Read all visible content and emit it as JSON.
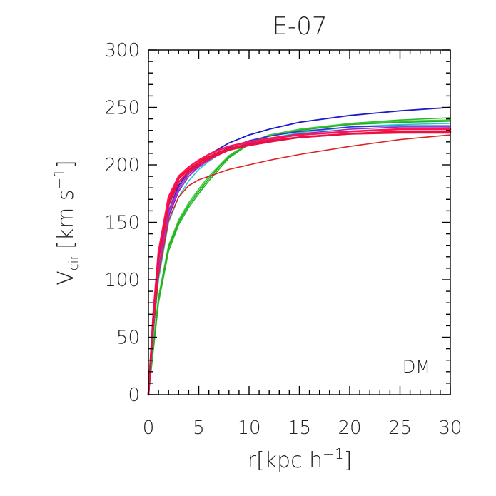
{
  "chart_data": {
    "type": "line",
    "title": "E-07",
    "xlabel": "r[kpc h",
    "xlabel_sup": "−1",
    "xlabel_close": "]",
    "ylabel": "V",
    "ylabel_sub": "cir",
    "ylabel_unit": "[km s",
    "ylabel_sup": "−1",
    "ylabel_close": "]",
    "annotation": "DM",
    "xlim": [
      0,
      30
    ],
    "ylim": [
      0,
      300
    ],
    "x_ticks": [
      0,
      5,
      10,
      15,
      20,
      25,
      30
    ],
    "y_ticks": [
      0,
      50,
      100,
      150,
      200,
      250,
      300
    ],
    "x_tick_labels": [
      "0",
      "5",
      "10",
      "15",
      "20",
      "25",
      "30"
    ],
    "y_tick_labels": [
      "0",
      "50",
      "100",
      "150",
      "200",
      "250",
      "300"
    ],
    "x_minor_step": 1,
    "y_minor_step": 10,
    "series": [
      {
        "name": "green-1",
        "color": "#22bb22",
        "width": 1.6,
        "x": [
          0,
          0.5,
          1,
          2,
          3,
          4,
          5,
          6,
          7,
          8,
          10,
          12,
          15,
          20,
          25,
          30
        ],
        "y": [
          0,
          40,
          80,
          125,
          148,
          163,
          175,
          186,
          196,
          206,
          218,
          225,
          230,
          236,
          239,
          241
        ]
      },
      {
        "name": "green-2",
        "color": "#33cc33",
        "width": 1.6,
        "x": [
          0,
          0.5,
          1,
          2,
          3,
          4,
          5,
          6,
          7,
          8,
          10,
          12,
          15,
          20,
          25,
          30
        ],
        "y": [
          0,
          45,
          85,
          130,
          152,
          167,
          179,
          190,
          199,
          208,
          219,
          226,
          231,
          236,
          238,
          239
        ]
      },
      {
        "name": "green-3",
        "color": "#2aaa2a",
        "width": 1.6,
        "x": [
          0,
          0.5,
          1,
          2,
          3,
          4,
          5,
          6,
          7,
          8,
          10,
          12,
          15,
          20,
          25,
          30
        ],
        "y": [
          0,
          42,
          82,
          128,
          150,
          165,
          177,
          188,
          198,
          207,
          218,
          225,
          230,
          235,
          237,
          238
        ]
      },
      {
        "name": "cyan-1",
        "color": "#22cccc",
        "width": 1.6,
        "x": [
          0,
          0.5,
          1,
          2,
          3,
          4,
          5,
          6,
          7,
          8,
          10,
          12,
          15,
          20,
          25,
          30
        ],
        "y": [
          0,
          55,
          100,
          150,
          172,
          186,
          196,
          203,
          209,
          213,
          219,
          223,
          228,
          233,
          235,
          236
        ]
      },
      {
        "name": "blue-1",
        "color": "#1a1acc",
        "width": 1.8,
        "x": [
          0,
          0.5,
          1,
          2,
          3,
          4,
          5,
          6,
          7,
          8,
          10,
          12,
          15,
          20,
          25,
          30
        ],
        "y": [
          0,
          60,
          108,
          160,
          182,
          194,
          202,
          209,
          214,
          219,
          226,
          231,
          237,
          243,
          247,
          250
        ]
      },
      {
        "name": "blue-2",
        "color": "#3333dd",
        "width": 1.6,
        "x": [
          0,
          0.5,
          1,
          2,
          3,
          4,
          5,
          6,
          7,
          8,
          10,
          12,
          15,
          20,
          25,
          30
        ],
        "y": [
          0,
          58,
          104,
          155,
          177,
          190,
          199,
          206,
          211,
          215,
          221,
          225,
          229,
          233,
          234,
          234
        ]
      },
      {
        "name": "purple-1",
        "color": "#8833bb",
        "width": 1.6,
        "x": [
          0,
          0.5,
          1,
          2,
          3,
          4,
          5,
          6,
          7,
          8,
          10,
          12,
          15,
          20,
          25,
          30
        ],
        "y": [
          0,
          62,
          110,
          160,
          180,
          192,
          200,
          206,
          210,
          214,
          219,
          223,
          227,
          231,
          233,
          233
        ]
      },
      {
        "name": "magenta-1",
        "color": "#cc22cc",
        "width": 1.6,
        "x": [
          0,
          0.5,
          1,
          2,
          3,
          4,
          5,
          6,
          7,
          8,
          10,
          12,
          15,
          20,
          25,
          30
        ],
        "y": [
          0,
          60,
          107,
          157,
          178,
          190,
          198,
          204,
          209,
          213,
          218,
          222,
          226,
          229,
          231,
          232
        ]
      },
      {
        "name": "red-low",
        "color": "#dd2222",
        "width": 1.6,
        "x": [
          0,
          0.5,
          1,
          2,
          3,
          4,
          5,
          6,
          7,
          8,
          10,
          12,
          15,
          20,
          25,
          30
        ],
        "y": [
          0,
          58,
          104,
          152,
          172,
          182,
          187,
          190,
          193,
          196,
          200,
          204,
          209,
          216,
          222,
          226
        ]
      },
      {
        "name": "red-1",
        "color": "#ee1133",
        "width": 2.6,
        "x": [
          0,
          0.5,
          1,
          2,
          3,
          4,
          5,
          6,
          7,
          8,
          10,
          12,
          15,
          20,
          25,
          30
        ],
        "y": [
          0,
          70,
          120,
          168,
          188,
          196,
          202,
          207,
          211,
          214,
          218,
          221,
          224,
          227,
          229,
          229
        ]
      },
      {
        "name": "red-2",
        "color": "#ff1155",
        "width": 2.6,
        "x": [
          0,
          0.5,
          1,
          2,
          3,
          4,
          5,
          6,
          7,
          8,
          10,
          12,
          15,
          20,
          25,
          30
        ],
        "y": [
          0,
          72,
          124,
          172,
          190,
          198,
          204,
          209,
          213,
          216,
          220,
          223,
          226,
          229,
          231,
          231
        ]
      },
      {
        "name": "red-3",
        "color": "#e8104a",
        "width": 2.6,
        "x": [
          0,
          0.5,
          1,
          2,
          3,
          4,
          5,
          6,
          7,
          8,
          10,
          12,
          15,
          20,
          25,
          30
        ],
        "y": [
          0,
          68,
          118,
          165,
          185,
          194,
          200,
          205,
          209,
          213,
          217,
          220,
          224,
          227,
          228,
          228
        ]
      }
    ]
  }
}
